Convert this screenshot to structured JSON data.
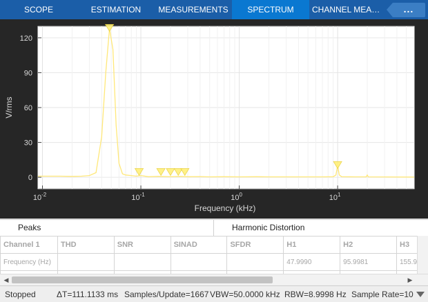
{
  "tabs": [
    {
      "label": "SCOPE",
      "active": false
    },
    {
      "label": "ESTIMATION",
      "active": false
    },
    {
      "label": "MEASUREMENTS",
      "active": false
    },
    {
      "label": "SPECTRUM",
      "active": true
    },
    {
      "label": "CHANNEL MEASU...",
      "active": false
    }
  ],
  "toolbar": {
    "more_label": "...",
    "more_icon": "ellipsis-icon"
  },
  "colors": {
    "tab_bar": "#1b5ea8",
    "active_tab": "#0a78d1",
    "plot_bg": "#ffffff",
    "figure_bg": "#262626",
    "trace": "#ffe879",
    "peak_marker": "#fff07a"
  },
  "chart_data": {
    "type": "line",
    "xlabel": "Frequency (kHz)",
    "ylabel": "V/rms",
    "xscale": "log",
    "xlim": [
      0.009,
      60
    ],
    "ylim": [
      -10,
      130
    ],
    "grid": true,
    "xticks": [
      {
        "value": 0.01,
        "base": "10",
        "exp": "-2"
      },
      {
        "value": 0.1,
        "base": "10",
        "exp": "-1"
      },
      {
        "value": 1,
        "base": "10",
        "exp": "0"
      },
      {
        "value": 10,
        "base": "10",
        "exp": "1"
      }
    ],
    "yticks": [
      {
        "value": 0,
        "label": "0"
      },
      {
        "value": 30,
        "label": "30"
      },
      {
        "value": 60,
        "label": "60"
      },
      {
        "value": 90,
        "label": "90"
      },
      {
        "value": 120,
        "label": "120"
      }
    ],
    "series": [
      {
        "x": [
          0.009,
          0.01,
          0.015,
          0.02,
          0.025,
          0.03,
          0.035,
          0.04,
          0.044,
          0.048,
          0.052,
          0.056,
          0.06,
          0.065,
          0.07,
          0.08,
          0.09,
          0.1,
          0.12,
          0.15,
          0.2,
          0.25,
          0.3,
          0.4,
          0.5,
          0.7,
          1,
          1.5,
          2,
          3,
          5,
          7,
          9,
          9.6,
          10,
          10.4,
          11,
          15,
          19.5,
          20,
          20.5,
          30,
          60
        ],
        "y": [
          1,
          1,
          1,
          0.8,
          1,
          1.5,
          4,
          35,
          90,
          128,
          110,
          45,
          12,
          3,
          2,
          1.5,
          1,
          1.5,
          0.5,
          0.8,
          0.5,
          0.8,
          0.5,
          0.6,
          0.4,
          0.5,
          0.4,
          0.5,
          0.4,
          0.4,
          0.4,
          0.4,
          0.5,
          2,
          10,
          2,
          0.5,
          0.4,
          0.4,
          2,
          0.4,
          0.3,
          0.2
        ]
      }
    ],
    "peaks": [
      {
        "x": 0.048,
        "y": 128
      },
      {
        "x": 0.096,
        "y": 4
      },
      {
        "x": 0.16,
        "y": 4
      },
      {
        "x": 0.2,
        "y": 4
      },
      {
        "x": 0.24,
        "y": 4
      },
      {
        "x": 0.28,
        "y": 4
      },
      {
        "x": 10,
        "y": 10
      }
    ]
  },
  "panes": {
    "peaks_title": "Peaks",
    "harmonic_title": "Harmonic Distortion"
  },
  "table": {
    "headers": [
      "Channel 1",
      "THD",
      "SNR",
      "SINAD",
      "SFDR",
      "H1",
      "H2",
      "H3"
    ],
    "rows": [
      [
        "Frequency (Hz)",
        "",
        "",
        "",
        "",
        "47.9990",
        "95.9981",
        "155.9"
      ],
      [
        "",
        "",
        "",
        "",
        "",
        "",
        "",
        ""
      ]
    ]
  },
  "status": {
    "state": "Stopped",
    "delta_t": "ΔT=111.1133 ms",
    "samples": "Samples/Update=1667",
    "vbw": "VBW=50.0000 kHz",
    "rbw": "RBW=8.9998 Hz",
    "sample_rate": "Sample Rate=10"
  }
}
